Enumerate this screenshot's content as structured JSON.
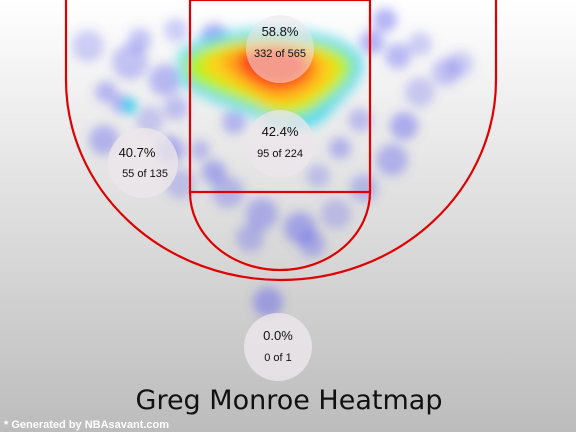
{
  "chart_data": {
    "type": "heatmap",
    "title": "Greg Monroe Heatmap",
    "subject": "Greg Monroe",
    "zones": [
      {
        "id": "restricted-area",
        "percentage": "58.8%",
        "made_attempted": "332 of 565",
        "made": 332,
        "attempted": 565
      },
      {
        "id": "paint",
        "percentage": "42.4%",
        "made_attempted": "95 of 224",
        "made": 95,
        "attempted": 224
      },
      {
        "id": "mid-range-left",
        "percentage": "40.7%",
        "made_attempted": "55 of 135",
        "made": 55,
        "attempted": 135
      },
      {
        "id": "backcourt",
        "percentage": "0.0%",
        "made_attempted": "0 of 1",
        "made": 0,
        "attempted": 1
      }
    ],
    "heat_scale": [
      "#5555ee",
      "#22d3ee",
      "#b6f516",
      "#ffd21e",
      "#ff9f1a",
      "#ff3b1a"
    ]
  },
  "footer": {
    "credit": "* Generated by NBAsavant.com"
  },
  "colors": {
    "court_line": "#e00000",
    "background_top": "#ffffff",
    "background_bottom": "#bcbcbc",
    "zone_bubble": "#ece6ea"
  }
}
